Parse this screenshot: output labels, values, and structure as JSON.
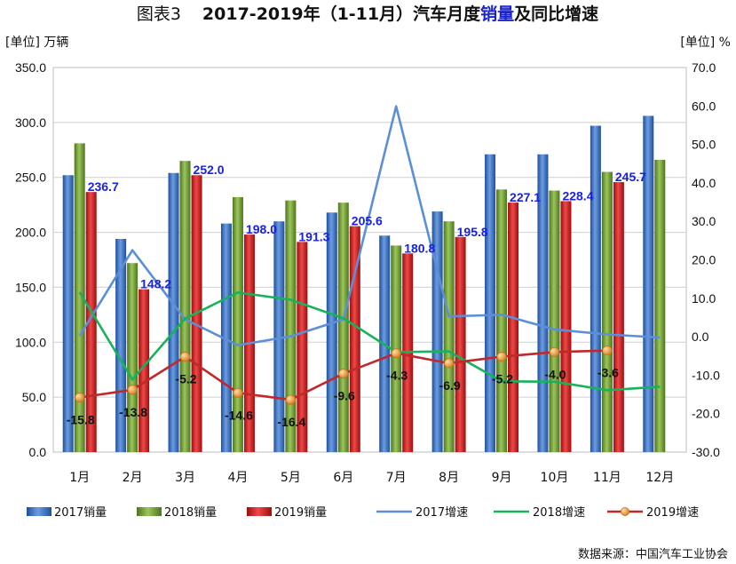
{
  "title": {
    "prefix": "图表3",
    "main_before": "2017-2019年（1-11月）汽车月度",
    "main_highlight": "销量",
    "main_after": "及同比增速"
  },
  "units": {
    "left": "[单位] 万辆",
    "right": "[单位] %"
  },
  "source": "数据来源：中国汽车工业协会",
  "colors": {
    "bar_2017": "#3b6fc0",
    "bar_2018": "#6e9a32",
    "bar_2019": "#d21e1e",
    "line_2017": "#5b8fd8",
    "line_2018": "#17b25a",
    "line_2019": "#c0282a",
    "marker_2019": "#e89a3a",
    "sales_label": "#1a22e0",
    "title_highlight": "#1a22c8"
  },
  "chart_data": {
    "type": "bar",
    "categories": [
      "1月",
      "2月",
      "3月",
      "4月",
      "5月",
      "6月",
      "7月",
      "8月",
      "9月",
      "10月",
      "11月",
      "12月"
    ],
    "y_left": {
      "min": 0,
      "max": 350,
      "step": 50,
      "tick_labels": [
        "0.0",
        "50.0",
        "100.0",
        "150.0",
        "200.0",
        "250.0",
        "300.0",
        "350.0"
      ]
    },
    "y_right": {
      "min": -30,
      "max": 70,
      "step": 10,
      "tick_labels": [
        "-30.0",
        "-20.0",
        "-10.0",
        "0.0",
        "10.0",
        "20.0",
        "30.0",
        "40.0",
        "50.0",
        "60.0",
        "70.0"
      ]
    },
    "grid": true,
    "legend_position": "bottom",
    "bar_series": [
      {
        "name": "2017销量",
        "values": [
          252,
          194,
          254,
          208,
          210,
          218,
          197,
          219,
          271,
          271,
          297,
          306
        ]
      },
      {
        "name": "2018销量",
        "values": [
          281,
          172,
          265,
          232,
          229,
          227,
          188,
          210,
          239,
          238,
          255,
          266
        ]
      },
      {
        "name": "2019销量",
        "values": [
          236.7,
          148.2,
          252.0,
          198.0,
          191.3,
          205.6,
          180.8,
          195.8,
          227.1,
          228.4,
          245.7,
          null
        ],
        "data_labels": [
          "236.7",
          "148.2",
          "252.0",
          "198.0",
          "191.3",
          "205.6",
          "180.8",
          "195.8",
          "227.1",
          "228.4",
          "245.7",
          ""
        ]
      }
    ],
    "line_series": [
      {
        "name": "2017增速",
        "values": [
          0.2,
          22.5,
          4.5,
          -2.2,
          0.1,
          4.5,
          59.9,
          5.3,
          5.7,
          1.9,
          0.6,
          -0.2
        ]
      },
      {
        "name": "2018增速",
        "values": [
          11.6,
          -11.1,
          4.7,
          11.5,
          9.6,
          4.8,
          -4.0,
          -3.8,
          -11.6,
          -11.7,
          -13.9,
          -13.0
        ]
      },
      {
        "name": "2019增速",
        "values": [
          -15.8,
          -13.8,
          -5.2,
          -14.6,
          -16.4,
          -9.6,
          -4.3,
          -6.9,
          -5.2,
          -4.0,
          -3.6,
          null
        ],
        "data_labels": [
          "-15.8",
          "-13.8",
          "-5.2",
          "-14.6",
          "-16.4",
          "-9.6",
          "-4.3",
          "-6.9",
          "-5.2",
          "-4.0",
          "-3.6",
          ""
        ]
      }
    ],
    "legend": [
      "2017销量",
      "2018销量",
      "2019销量",
      "2017增速",
      "2018增速",
      "2019增速"
    ]
  }
}
